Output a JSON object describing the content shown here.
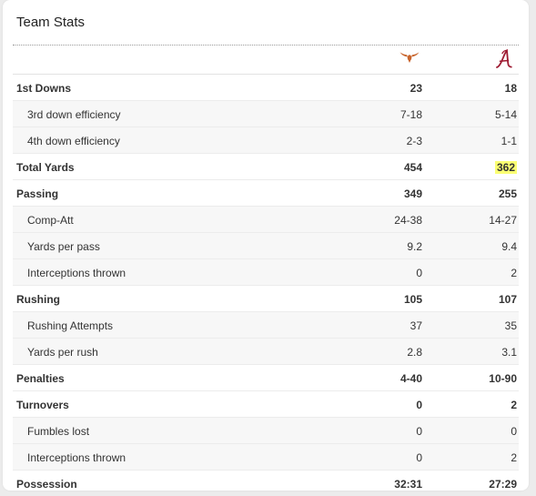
{
  "title": "Team Stats",
  "teams": [
    {
      "icon": "longhorn-icon",
      "color": "#c8642b"
    },
    {
      "icon": "script-a-icon",
      "color": "#9e1b32"
    }
  ],
  "highlight_color": "#fbff72",
  "rows": [
    {
      "label": "1st Downs",
      "type": "main",
      "v1": "23",
      "v2": "18"
    },
    {
      "label": "3rd down efficiency",
      "type": "sub",
      "v1": "7-18",
      "v2": "5-14"
    },
    {
      "label": "4th down efficiency",
      "type": "sub",
      "v1": "2-3",
      "v2": "1-1"
    },
    {
      "label": "Total Yards",
      "type": "main",
      "v1": "454",
      "v2": "362",
      "v2_highlight": true
    },
    {
      "label": "Passing",
      "type": "main",
      "v1": "349",
      "v2": "255"
    },
    {
      "label": "Comp-Att",
      "type": "sub",
      "v1": "24-38",
      "v2": "14-27"
    },
    {
      "label": "Yards per pass",
      "type": "sub",
      "v1": "9.2",
      "v2": "9.4"
    },
    {
      "label": "Interceptions thrown",
      "type": "sub",
      "v1": "0",
      "v2": "2"
    },
    {
      "label": "Rushing",
      "type": "main",
      "v1": "105",
      "v2": "107"
    },
    {
      "label": "Rushing Attempts",
      "type": "sub",
      "v1": "37",
      "v2": "35"
    },
    {
      "label": "Yards per rush",
      "type": "sub",
      "v1": "2.8",
      "v2": "3.1"
    },
    {
      "label": "Penalties",
      "type": "main",
      "v1": "4-40",
      "v2": "10-90"
    },
    {
      "label": "Turnovers",
      "type": "main",
      "v1": "0",
      "v2": "2"
    },
    {
      "label": "Fumbles lost",
      "type": "sub",
      "v1": "0",
      "v2": "0"
    },
    {
      "label": "Interceptions thrown",
      "type": "sub",
      "v1": "0",
      "v2": "2"
    },
    {
      "label": "Possession",
      "type": "main",
      "v1": "32:31",
      "v2": "27:29"
    }
  ]
}
